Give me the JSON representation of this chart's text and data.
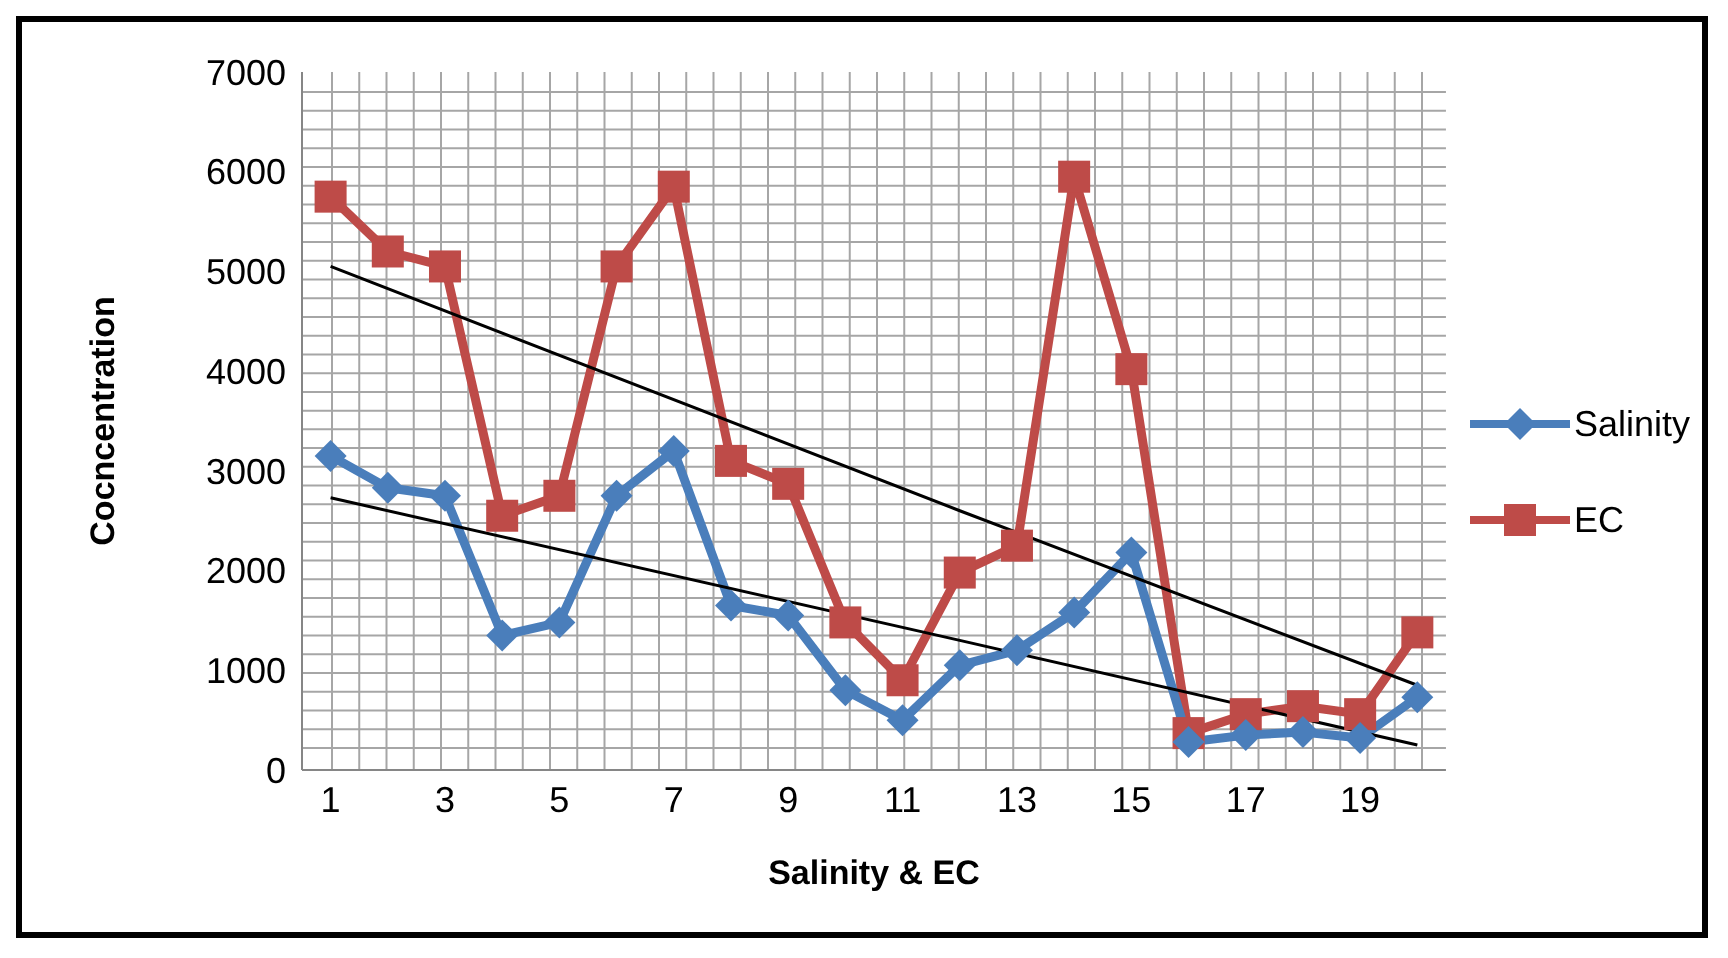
{
  "chart_data": {
    "type": "line",
    "xlabel": "Salinity & EC",
    "ylabel": "Cocncentration",
    "x": [
      1,
      2,
      3,
      4,
      5,
      6,
      7,
      8,
      9,
      10,
      11,
      12,
      13,
      14,
      15,
      16,
      17,
      18,
      19,
      20
    ],
    "xlim": [
      0.5,
      20.5
    ],
    "xticks": [
      1,
      3,
      5,
      7,
      9,
      11,
      13,
      15,
      17,
      19
    ],
    "ylim": [
      0,
      7000
    ],
    "yticks": [
      0,
      1000,
      2000,
      3000,
      4000,
      5000,
      6000,
      7000
    ],
    "grid": true,
    "legend": "right",
    "series": [
      {
        "name": "Salinity",
        "color": "#4a7ebb",
        "marker": "diamond",
        "values": [
          3150,
          2830,
          2750,
          1350,
          1480,
          2750,
          3200,
          1650,
          1550,
          800,
          500,
          1050,
          1200,
          1580,
          2180,
          280,
          350,
          380,
          320,
          730
        ]
      },
      {
        "name": "EC",
        "color": "#be4b48",
        "marker": "square",
        "values": [
          5750,
          5200,
          5050,
          2550,
          2750,
          5050,
          5850,
          3100,
          2870,
          1480,
          900,
          1980,
          2250,
          5950,
          4020,
          370,
          560,
          640,
          560,
          1380
        ]
      },
      {
        "type": "line",
        "color": "#000000",
        "marker": "none",
        "x": [
          1,
          12,
          20
        ],
        "values": [
          5050,
          2600,
          850
        ]
      },
      {
        "type": "line",
        "color": "#000000",
        "marker": "none",
        "x": [
          1,
          12,
          20
        ],
        "values": [
          2730,
          1300,
          250
        ]
      }
    ]
  }
}
